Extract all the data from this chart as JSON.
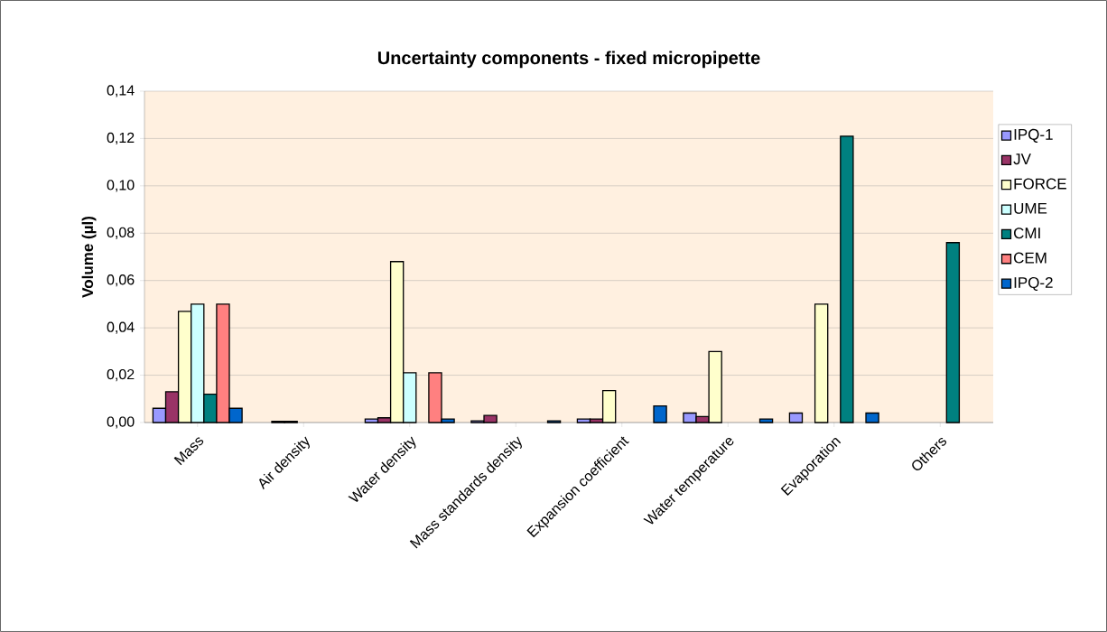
{
  "chart_data": {
    "type": "bar",
    "title": "Uncertainty components - fixed micropipette",
    "ylabel": "Volume (µl)",
    "categories": [
      "Mass",
      "Air density",
      "Water density",
      "Mass standards density",
      "Expansion coefficient",
      "Water temperature",
      "Evaporation",
      "Others"
    ],
    "series": [
      {
        "name": "IPQ-1",
        "color": "#9999ff",
        "values": [
          0.006,
          null,
          0.0015,
          0.0007,
          0.0015,
          0.004,
          0.004,
          null
        ]
      },
      {
        "name": "JV",
        "color": "#993366",
        "values": [
          0.013,
          0.0005,
          0.002,
          0.003,
          0.0015,
          0.0025,
          null,
          null
        ]
      },
      {
        "name": "FORCE",
        "color": "#ffffcc",
        "values": [
          0.047,
          0.0005,
          0.068,
          null,
          0.0135,
          0.03,
          0.05,
          null
        ]
      },
      {
        "name": "UME",
        "color": "#ccffff",
        "values": [
          0.05,
          null,
          0.021,
          null,
          null,
          null,
          null,
          null
        ]
      },
      {
        "name": "CMI",
        "color": "#008080",
        "values": [
          0.012,
          null,
          null,
          null,
          null,
          null,
          0.121,
          0.076
        ]
      },
      {
        "name": "CEM",
        "color": "#ff8080",
        "values": [
          0.05,
          null,
          0.021,
          null,
          null,
          null,
          null,
          null
        ]
      },
      {
        "name": "IPQ-2",
        "color": "#0066cc",
        "values": [
          0.006,
          null,
          0.0015,
          0.0007,
          0.007,
          0.0015,
          0.004,
          null
        ]
      }
    ],
    "ylim": [
      0,
      0.14
    ],
    "yticks": [
      {
        "value": 0,
        "label": "0,00"
      },
      {
        "value": 0.02,
        "label": "0,02"
      },
      {
        "value": 0.04,
        "label": "0,04"
      },
      {
        "value": 0.06,
        "label": "0,06"
      },
      {
        "value": 0.08,
        "label": "0,08"
      },
      {
        "value": 0.1,
        "label": "0,10"
      },
      {
        "value": 0.12,
        "label": "0,12"
      },
      {
        "value": 0.14,
        "label": "0,14"
      }
    ],
    "grid": "y",
    "legend": "right"
  }
}
